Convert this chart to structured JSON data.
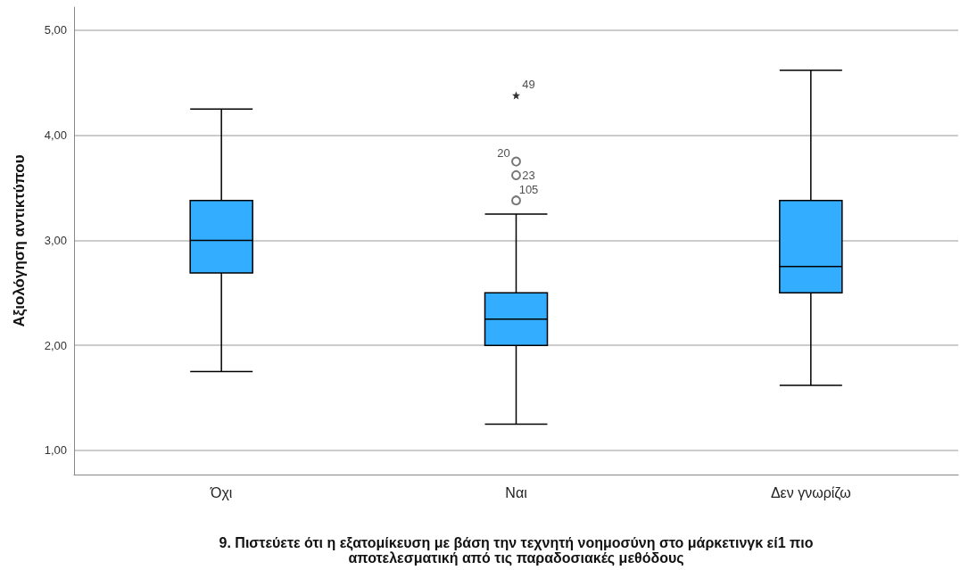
{
  "chart_data": {
    "type": "box",
    "xlabel": "9. Πιστεύετε ότι η εξατομίκευση με βάση την τεχνητή νοημοσύνη στο μάρκετινγκ εί1 πιο αποτελεσματική από τις παραδοσιακές μεθόδους",
    "ylabel": "Αξιολόγηση αντικτύπου",
    "categories": [
      "Όχι",
      "Ναι",
      "Δεν γνωρίζω"
    ],
    "series": [
      {
        "type": "box",
        "color": "#33adff",
        "boxes": [
          {
            "low": 1.75,
            "q1": 2.69,
            "median": 3.0,
            "q3": 3.38,
            "high": 4.25
          },
          {
            "low": 1.25,
            "q1": 2.0,
            "median": 2.25,
            "q3": 2.5,
            "high": 3.25
          },
          {
            "low": 1.62,
            "q1": 2.5,
            "median": 2.75,
            "q3": 3.38,
            "high": 4.62
          }
        ]
      },
      {
        "type": "scatter",
        "marker": "circle",
        "color": "#555555",
        "x": [
          "Ναι",
          "Ναι",
          "Ναι"
        ],
        "values": [
          3.38,
          3.62,
          3.75
        ]
      },
      {
        "type": "scatter",
        "marker": "star",
        "color": "#000000",
        "x": [
          "Ναι"
        ],
        "values": [
          4.38
        ]
      }
    ],
    "annotations": [
      {
        "text": "49",
        "x": "Ναι",
        "y": 4.38
      },
      {
        "text": "20",
        "x": "Ναι",
        "y": 3.75
      },
      {
        "text": "23",
        "x": "Ναι",
        "y": 3.62
      },
      {
        "text": "105",
        "x": "Ναι",
        "y": 3.38
      }
    ],
    "ylim": [
      0.77,
      5.22
    ],
    "yticks": [
      {
        "value": 1,
        "label": "1,00"
      },
      {
        "value": 2,
        "label": "2,00"
      },
      {
        "value": 3,
        "label": "3,00"
      },
      {
        "value": 4,
        "label": "4,00"
      },
      {
        "value": 5,
        "label": "5,00"
      }
    ],
    "grid": "y"
  }
}
